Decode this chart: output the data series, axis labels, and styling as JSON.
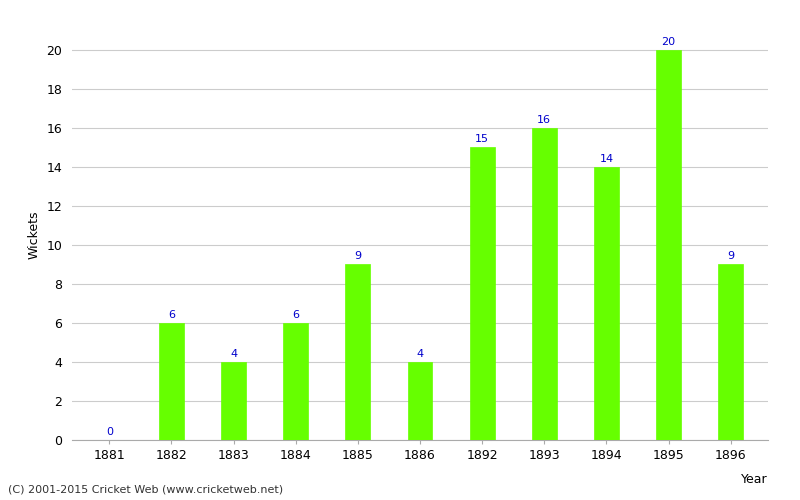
{
  "years": [
    "1881",
    "1882",
    "1883",
    "1884",
    "1885",
    "1886",
    "1892",
    "1893",
    "1894",
    "1895",
    "1896"
  ],
  "wickets": [
    0,
    6,
    4,
    6,
    9,
    4,
    15,
    16,
    14,
    20,
    9
  ],
  "bar_color": "#66ff00",
  "bar_edge_color": "#66ff00",
  "annotation_color": "#0000cc",
  "ylabel": "Wickets",
  "xlabel": "Year",
  "ylim": [
    0,
    21
  ],
  "yticks": [
    0,
    2,
    4,
    6,
    8,
    10,
    12,
    14,
    16,
    18,
    20
  ],
  "background_color": "#ffffff",
  "grid_color": "#cccccc",
  "annotation_fontsize": 8,
  "axis_label_fontsize": 9,
  "tick_fontsize": 9,
  "footer_text": "(C) 2001-2015 Cricket Web (www.cricketweb.net)",
  "footer_fontsize": 8,
  "bar_width": 0.4
}
